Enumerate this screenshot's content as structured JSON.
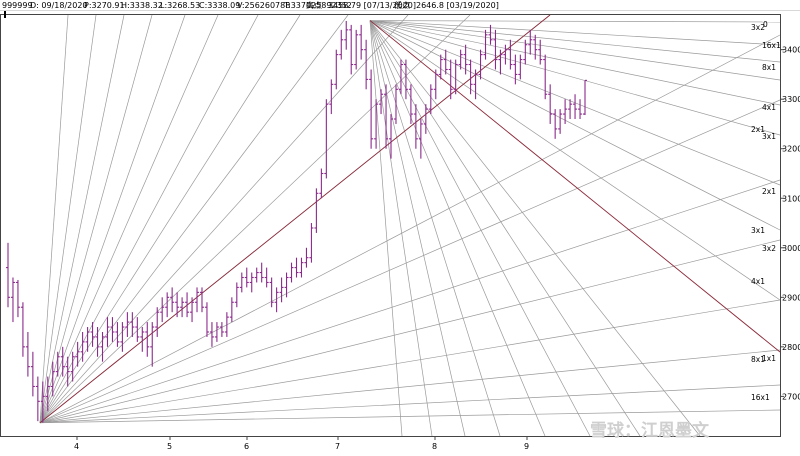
{
  "header": {
    "code": "999999",
    "date": "D: 09/18/2020",
    "p": "P:3270.91",
    "h": "H:3338.32",
    "l": "L:3268.53",
    "c": "C:3338.09",
    "v": "V:256260788",
    "t": "T:337025892352",
    "high_label": "高点",
    "high_value": "3458.79 [07/13/2020]",
    "low_label": "低点",
    "low_value": "2646.8 [03/19/2020]"
  },
  "watermark": "雪球：江恩墨文",
  "colors": {
    "price_bars": "#8b2a8b",
    "trend_line": "#8b2a3a",
    "fan_lines": "#9a9a9a",
    "background": "#ffffff"
  },
  "chart_data": {
    "type": "ohlc",
    "price_axis": {
      "ticks": [
        2700,
        2800,
        2900,
        3000,
        3100,
        3200,
        3300,
        3400
      ],
      "ylim": [
        2620,
        3470
      ]
    },
    "time_axis": {
      "ticks": [
        "4",
        "5",
        "6",
        "7",
        "8",
        "9"
      ]
    },
    "gann_fan_low": {
      "anchor": "03/19/2020 low 2646.8",
      "labels": [
        "16x1",
        "8x1",
        "4x1",
        "3x2",
        "3x1",
        "2x1",
        "1x1",
        "2x1",
        "3x1",
        "4x1",
        "8x1",
        "16x1"
      ]
    },
    "gann_fan_high": {
      "anchor": "07/13/2020 high 3458.79",
      "labels": [
        "3x2",
        "0"
      ]
    },
    "series": [
      {
        "values": [
          [
            2960,
            3010,
            2880,
            2900
          ],
          [
            2900,
            2940,
            2850,
            2930
          ],
          [
            2930,
            2935,
            2860,
            2880
          ],
          [
            2880,
            2890,
            2780,
            2800
          ],
          [
            2800,
            2830,
            2740,
            2760
          ],
          [
            2760,
            2790,
            2700,
            2720
          ],
          [
            2720,
            2740,
            2650,
            2690
          ],
          [
            2690,
            2730,
            2647,
            2700
          ],
          [
            2700,
            2740,
            2670,
            2720
          ],
          [
            2720,
            2770,
            2700,
            2750
          ],
          [
            2750,
            2790,
            2740,
            2780
          ],
          [
            2780,
            2800,
            2740,
            2760
          ],
          [
            2760,
            2780,
            2720,
            2750
          ],
          [
            2750,
            2790,
            2730,
            2780
          ],
          [
            2780,
            2810,
            2760,
            2790
          ],
          [
            2790,
            2830,
            2770,
            2810
          ],
          [
            2810,
            2840,
            2790,
            2830
          ],
          [
            2830,
            2850,
            2800,
            2820
          ],
          [
            2820,
            2840,
            2780,
            2800
          ],
          [
            2800,
            2830,
            2770,
            2820
          ],
          [
            2820,
            2860,
            2800,
            2840
          ],
          [
            2840,
            2860,
            2810,
            2830
          ],
          [
            2830,
            2850,
            2800,
            2810
          ],
          [
            2810,
            2850,
            2790,
            2840
          ],
          [
            2840,
            2870,
            2820,
            2850
          ],
          [
            2850,
            2870,
            2820,
            2840
          ],
          [
            2840,
            2860,
            2810,
            2820
          ],
          [
            2820,
            2840,
            2790,
            2830
          ],
          [
            2830,
            2850,
            2780,
            2800
          ],
          [
            2800,
            2850,
            2760,
            2840
          ],
          [
            2840,
            2880,
            2820,
            2870
          ],
          [
            2870,
            2900,
            2850,
            2880
          ],
          [
            2880,
            2910,
            2860,
            2900
          ],
          [
            2900,
            2920,
            2870,
            2890
          ],
          [
            2890,
            2910,
            2860,
            2880
          ],
          [
            2880,
            2900,
            2860,
            2890
          ],
          [
            2890,
            2910,
            2860,
            2870
          ],
          [
            2870,
            2900,
            2850,
            2890
          ],
          [
            2890,
            2920,
            2870,
            2910
          ],
          [
            2910,
            2920,
            2870,
            2880
          ],
          [
            2880,
            2890,
            2820,
            2830
          ],
          [
            2830,
            2850,
            2800,
            2820
          ],
          [
            2820,
            2850,
            2810,
            2840
          ],
          [
            2840,
            2850,
            2820,
            2830
          ],
          [
            2830,
            2870,
            2820,
            2860
          ],
          [
            2860,
            2900,
            2850,
            2890
          ],
          [
            2890,
            2930,
            2880,
            2920
          ],
          [
            2920,
            2950,
            2910,
            2940
          ],
          [
            2940,
            2960,
            2920,
            2930
          ],
          [
            2930,
            2950,
            2910,
            2940
          ],
          [
            2940,
            2960,
            2930,
            2950
          ],
          [
            2950,
            2970,
            2930,
            2940
          ],
          [
            2940,
            2960,
            2920,
            2930
          ],
          [
            2930,
            2940,
            2880,
            2890
          ],
          [
            2890,
            2920,
            2870,
            2910
          ],
          [
            2910,
            2940,
            2890,
            2920
          ],
          [
            2920,
            2950,
            2900,
            2940
          ],
          [
            2940,
            2970,
            2930,
            2960
          ],
          [
            2960,
            2980,
            2940,
            2950
          ],
          [
            2950,
            2980,
            2940,
            2970
          ],
          [
            2970,
            3000,
            2960,
            2980
          ],
          [
            2980,
            3050,
            2970,
            3040
          ],
          [
            3040,
            3120,
            3030,
            3110
          ],
          [
            3110,
            3160,
            3100,
            3150
          ],
          [
            3150,
            3300,
            3140,
            3290
          ],
          [
            3290,
            3340,
            3270,
            3330
          ],
          [
            3330,
            3400,
            3320,
            3390
          ],
          [
            3390,
            3440,
            3380,
            3420
          ],
          [
            3420,
            3458,
            3400,
            3440
          ],
          [
            3440,
            3450,
            3350,
            3370
          ],
          [
            3370,
            3440,
            3360,
            3430
          ],
          [
            3430,
            3450,
            3380,
            3400
          ],
          [
            3400,
            3420,
            3320,
            3340
          ],
          [
            3340,
            3360,
            3200,
            3220
          ],
          [
            3220,
            3300,
            3200,
            3290
          ],
          [
            3290,
            3320,
            3270,
            3310
          ],
          [
            3310,
            3330,
            3200,
            3220
          ],
          [
            3220,
            3270,
            3180,
            3260
          ],
          [
            3260,
            3330,
            3250,
            3320
          ],
          [
            3320,
            3380,
            3310,
            3370
          ],
          [
            3370,
            3380,
            3300,
            3320
          ],
          [
            3320,
            3330,
            3250,
            3270
          ],
          [
            3270,
            3290,
            3200,
            3220
          ],
          [
            3220,
            3260,
            3180,
            3250
          ],
          [
            3250,
            3290,
            3230,
            3280
          ],
          [
            3280,
            3330,
            3270,
            3320
          ],
          [
            3320,
            3360,
            3300,
            3350
          ],
          [
            3350,
            3390,
            3340,
            3380
          ],
          [
            3380,
            3400,
            3350,
            3360
          ],
          [
            3360,
            3380,
            3300,
            3320
          ],
          [
            3320,
            3380,
            3310,
            3370
          ],
          [
            3370,
            3400,
            3360,
            3390
          ],
          [
            3390,
            3410,
            3350,
            3370
          ],
          [
            3370,
            3380,
            3310,
            3330
          ],
          [
            3330,
            3360,
            3300,
            3350
          ],
          [
            3350,
            3400,
            3340,
            3390
          ],
          [
            3390,
            3440,
            3380,
            3430
          ],
          [
            3430,
            3450,
            3410,
            3420
          ],
          [
            3420,
            3440,
            3360,
            3380
          ],
          [
            3380,
            3400,
            3350,
            3390
          ],
          [
            3390,
            3410,
            3370,
            3400
          ],
          [
            3400,
            3420,
            3360,
            3370
          ],
          [
            3370,
            3390,
            3330,
            3350
          ],
          [
            3350,
            3390,
            3340,
            3380
          ],
          [
            3380,
            3420,
            3370,
            3410
          ],
          [
            3410,
            3440,
            3390,
            3420
          ],
          [
            3420,
            3430,
            3380,
            3400
          ],
          [
            3400,
            3420,
            3370,
            3380
          ],
          [
            3380,
            3390,
            3300,
            3310
          ],
          [
            3310,
            3330,
            3250,
            3270
          ],
          [
            3270,
            3280,
            3220,
            3240
          ],
          [
            3240,
            3280,
            3230,
            3270
          ],
          [
            3270,
            3300,
            3250,
            3280
          ],
          [
            3280,
            3300,
            3260,
            3290
          ],
          [
            3290,
            3310,
            3260,
            3280
          ],
          [
            3280,
            3300,
            3260,
            3270
          ],
          [
            3270,
            3338,
            3268,
            3338
          ]
        ]
      }
    ]
  }
}
